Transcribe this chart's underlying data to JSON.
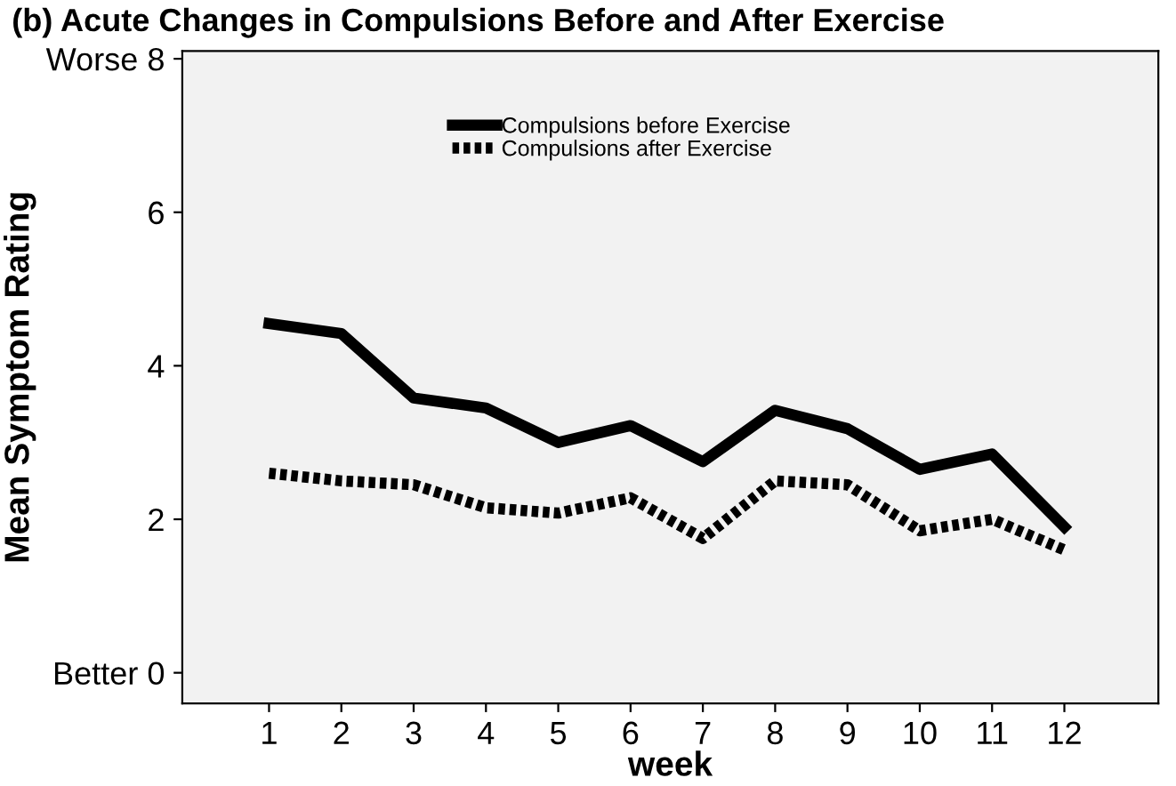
{
  "chart_data": {
    "type": "line",
    "title": "(b) Acute Changes in Compulsions Before and After Exercise",
    "xlabel": "week",
    "ylabel": "Mean Symptom Rating",
    "x": [
      1,
      2,
      3,
      4,
      5,
      6,
      7,
      8,
      9,
      10,
      11,
      12
    ],
    "series": [
      {
        "name": "Compulsions before Exercise",
        "color": "#000000",
        "line_style": "solid",
        "values": [
          4.55,
          4.42,
          3.58,
          3.45,
          3.0,
          3.22,
          2.75,
          3.42,
          3.18,
          2.65,
          2.85,
          1.9
        ]
      },
      {
        "name": "Compulsions after Exercise",
        "color": "#000000",
        "line_style": "dotted",
        "values": [
          2.6,
          2.5,
          2.45,
          2.15,
          2.08,
          2.28,
          1.75,
          2.5,
          2.45,
          1.85,
          2.0,
          1.6
        ]
      }
    ],
    "xlim": [
      -0.2,
      13.3
    ],
    "xticks": [
      1,
      2,
      3,
      4,
      5,
      6,
      7,
      8,
      9,
      10,
      11,
      12
    ],
    "ylim": [
      -0.4,
      8.1
    ],
    "yticks": [
      {
        "value": 0,
        "label": "Better 0"
      },
      2,
      4,
      6,
      {
        "value": 8,
        "label": "Worse 8"
      }
    ],
    "grid": false,
    "legend": "top",
    "marker": "none"
  }
}
